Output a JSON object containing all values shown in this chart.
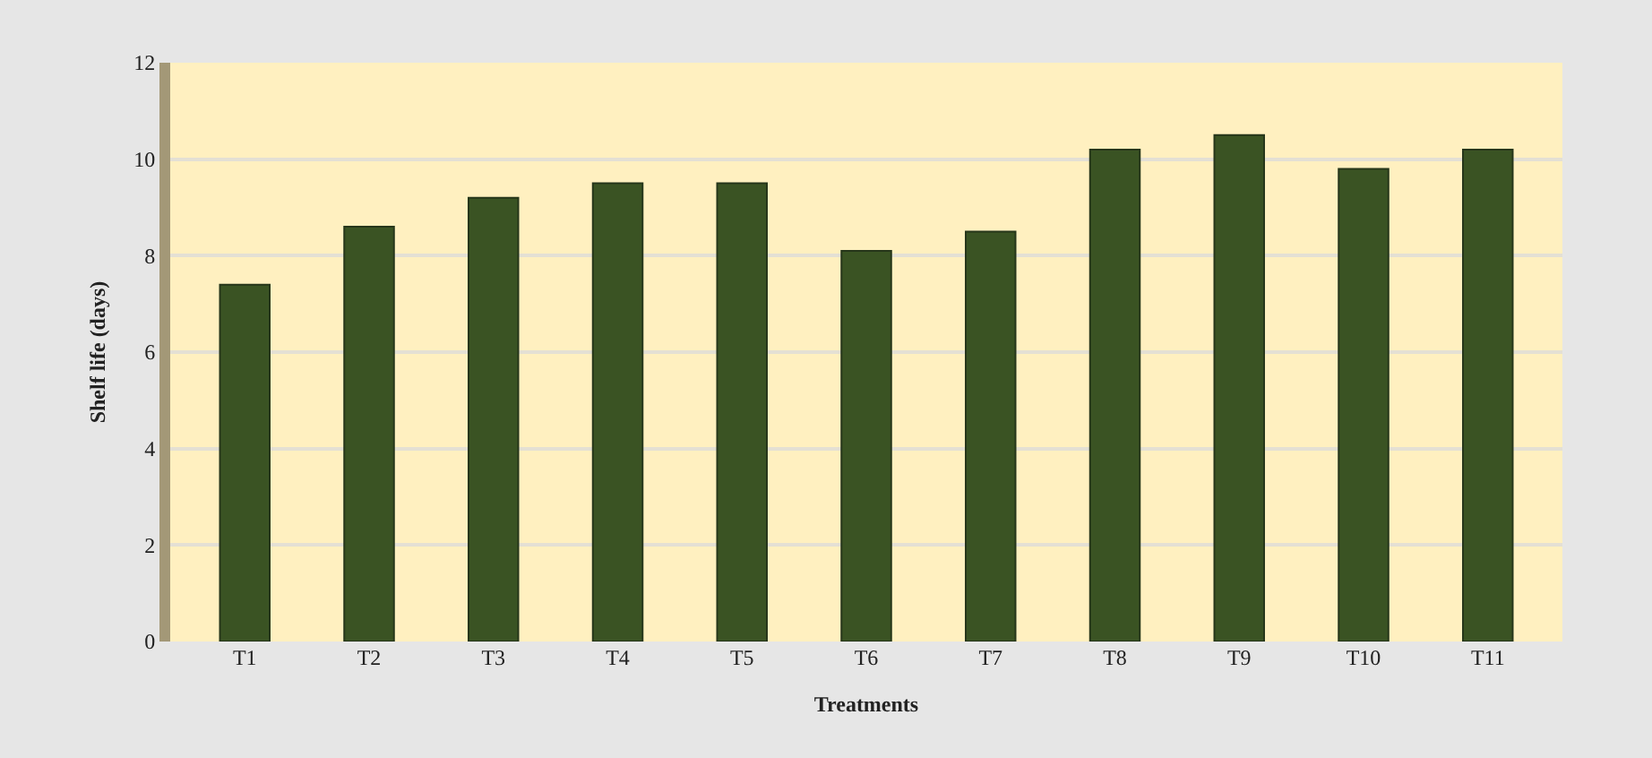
{
  "chart_data": {
    "type": "bar",
    "xlabel": "Treatments",
    "ylabel": "Shelf life (days)",
    "categories": [
      "T1",
      "T2",
      "T3",
      "T4",
      "T5",
      "T6",
      "T7",
      "T8",
      "T9",
      "T10",
      "T11"
    ],
    "values": [
      7.4,
      8.6,
      9.2,
      9.5,
      9.5,
      8.1,
      8.5,
      10.2,
      10.5,
      9.8,
      10.2
    ],
    "color": "#3a5323",
    "ylim": [
      0,
      12
    ],
    "yticks": [
      0,
      2,
      4,
      6,
      8,
      10,
      12
    ],
    "grid": "y"
  }
}
